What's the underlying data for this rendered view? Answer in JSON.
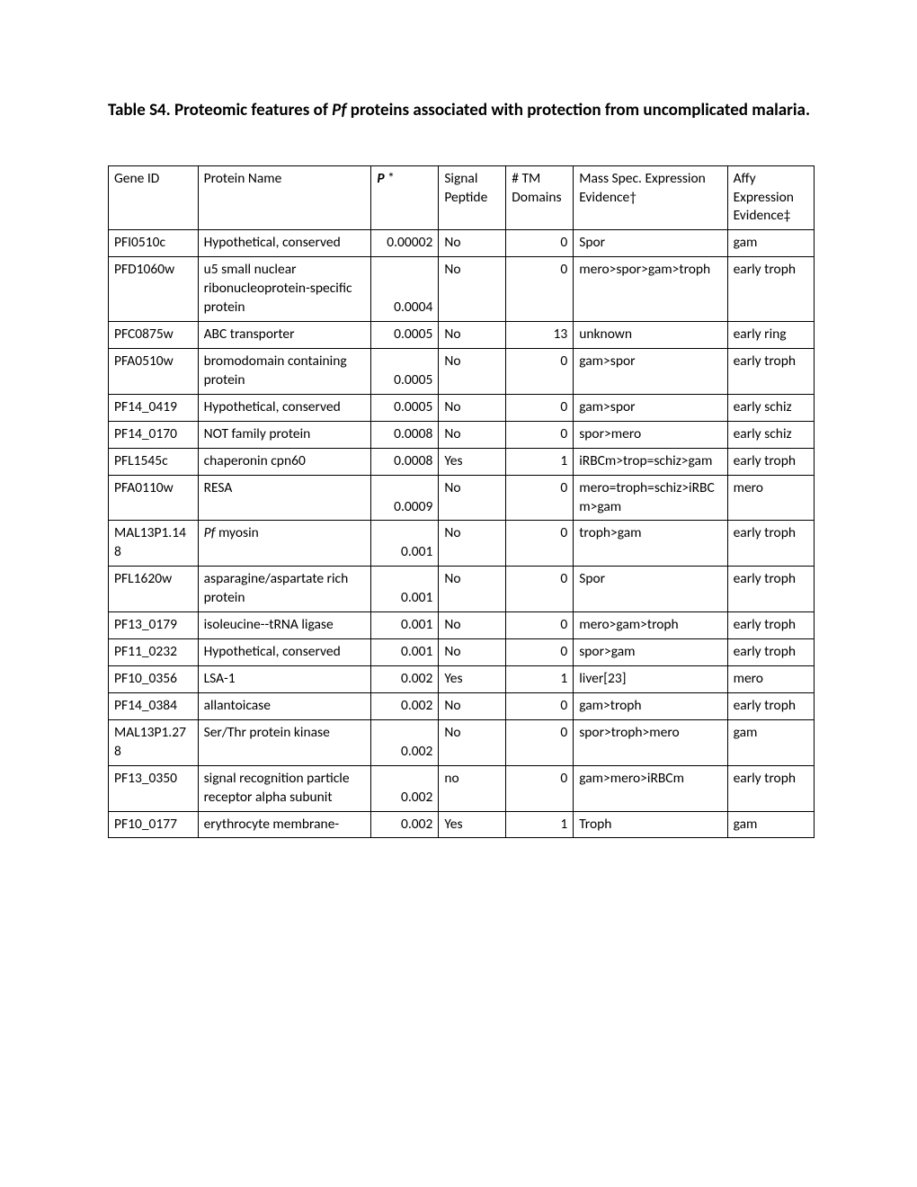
{
  "title_parts": {
    "before_pf": "Table S4. Proteomic features of ",
    "pf": "Pf",
    "after_pf": " proteins associated with protection from uncomplicated malaria."
  },
  "headers": {
    "gene": "Gene ID",
    "name": "Protein Name",
    "p_label": "P",
    "p_star": " *",
    "signal": "Signal Peptide",
    "tm": "# TM Domains",
    "ms": "Mass Spec. Expression Evidence†",
    "affy": "Affy Expression Evidence‡"
  },
  "rows": [
    {
      "gene": "PFI0510c",
      "name": "Hypothetical, conserved",
      "p": "0.00002",
      "signal": "No",
      "tm": "0",
      "ms": "Spor",
      "affy": "gam"
    },
    {
      "gene": "PFD1060w",
      "name": "u5 small nuclear ribonucleoprotein-specific protein",
      "p": "0.0004",
      "signal": "No",
      "tm": "0",
      "ms": "mero>spor>gam>troph",
      "affy": "early troph"
    },
    {
      "gene": "PFC0875w",
      "name": "ABC transporter",
      "p": "0.0005",
      "signal": "No",
      "tm": "13",
      "ms": "unknown",
      "affy": "early ring"
    },
    {
      "gene": "PFA0510w",
      "name": "bromodomain containing protein",
      "p": "0.0005",
      "signal": "No",
      "tm": "0",
      "ms": "gam>spor",
      "affy": "early troph"
    },
    {
      "gene": "PF14_0419",
      "name": "Hypothetical, conserved",
      "p": "0.0005",
      "signal": "No",
      "tm": "0",
      "ms": "gam>spor",
      "affy": "early schiz"
    },
    {
      "gene": "PF14_0170",
      "name": "NOT family protein",
      "p": "0.0008",
      "signal": "No",
      "tm": "0",
      "ms": "spor>mero",
      "affy": "early schiz"
    },
    {
      "gene": "PFL1545c",
      "name": "chaperonin cpn60",
      "p": "0.0008",
      "signal": "Yes",
      "tm": "1",
      "ms": "iRBCm>trop=schiz>gam",
      "affy": "early troph"
    },
    {
      "gene": "PFA0110w",
      "name": "RESA",
      "p": "0.0009",
      "signal": "No",
      "tm": "0",
      "ms": "mero=troph=schiz>iRBCm>gam",
      "affy": "mero"
    },
    {
      "gene": "MAL13P1.148",
      "name_pf": "Pf",
      "name_rest": " myosin",
      "p": "0.001",
      "signal": "No",
      "tm": "0",
      "ms": "troph>gam",
      "affy": "early troph",
      "pf_name": true
    },
    {
      "gene": "PFL1620w",
      "name": "asparagine/aspartate rich protein",
      "p": "0.001",
      "signal": "No",
      "tm": "0",
      "ms": "Spor",
      "affy": "early troph"
    },
    {
      "gene": "PF13_0179",
      "name": "isoleucine--tRNA ligase",
      "p": "0.001",
      "signal": "No",
      "tm": "0",
      "ms": "mero>gam>troph",
      "affy": "early troph"
    },
    {
      "gene": "PF11_0232",
      "name": "Hypothetical, conserved",
      "p": "0.001",
      "signal": "No",
      "tm": "0",
      "ms": "spor>gam",
      "affy": "early troph"
    },
    {
      "gene": "PF10_0356",
      "name": "LSA-1",
      "p": "0.002",
      "signal": "Yes",
      "tm": "1",
      "ms": "liver[23]",
      "affy": "mero"
    },
    {
      "gene": "PF14_0384",
      "name": "allantoicase",
      "p": "0.002",
      "signal": "No",
      "tm": "0",
      "ms": "gam>troph",
      "affy": "early troph"
    },
    {
      "gene": "MAL13P1.278",
      "name": "Ser/Thr protein kinase",
      "p": "0.002",
      "signal": "No",
      "tm": "0",
      "ms": "spor>troph>mero",
      "affy": "gam"
    },
    {
      "gene": "PF13_0350",
      "name": "signal recognition particle receptor alpha subunit",
      "p": "0.002",
      "signal": "no",
      "tm": "0",
      "ms": "gam>mero>iRBCm",
      "affy": "early troph"
    },
    {
      "gene": "PF10_0177",
      "name": "erythrocyte membrane-",
      "p": "0.002",
      "signal": "Yes",
      "tm": "1",
      "ms": "Troph",
      "affy": "gam"
    }
  ]
}
